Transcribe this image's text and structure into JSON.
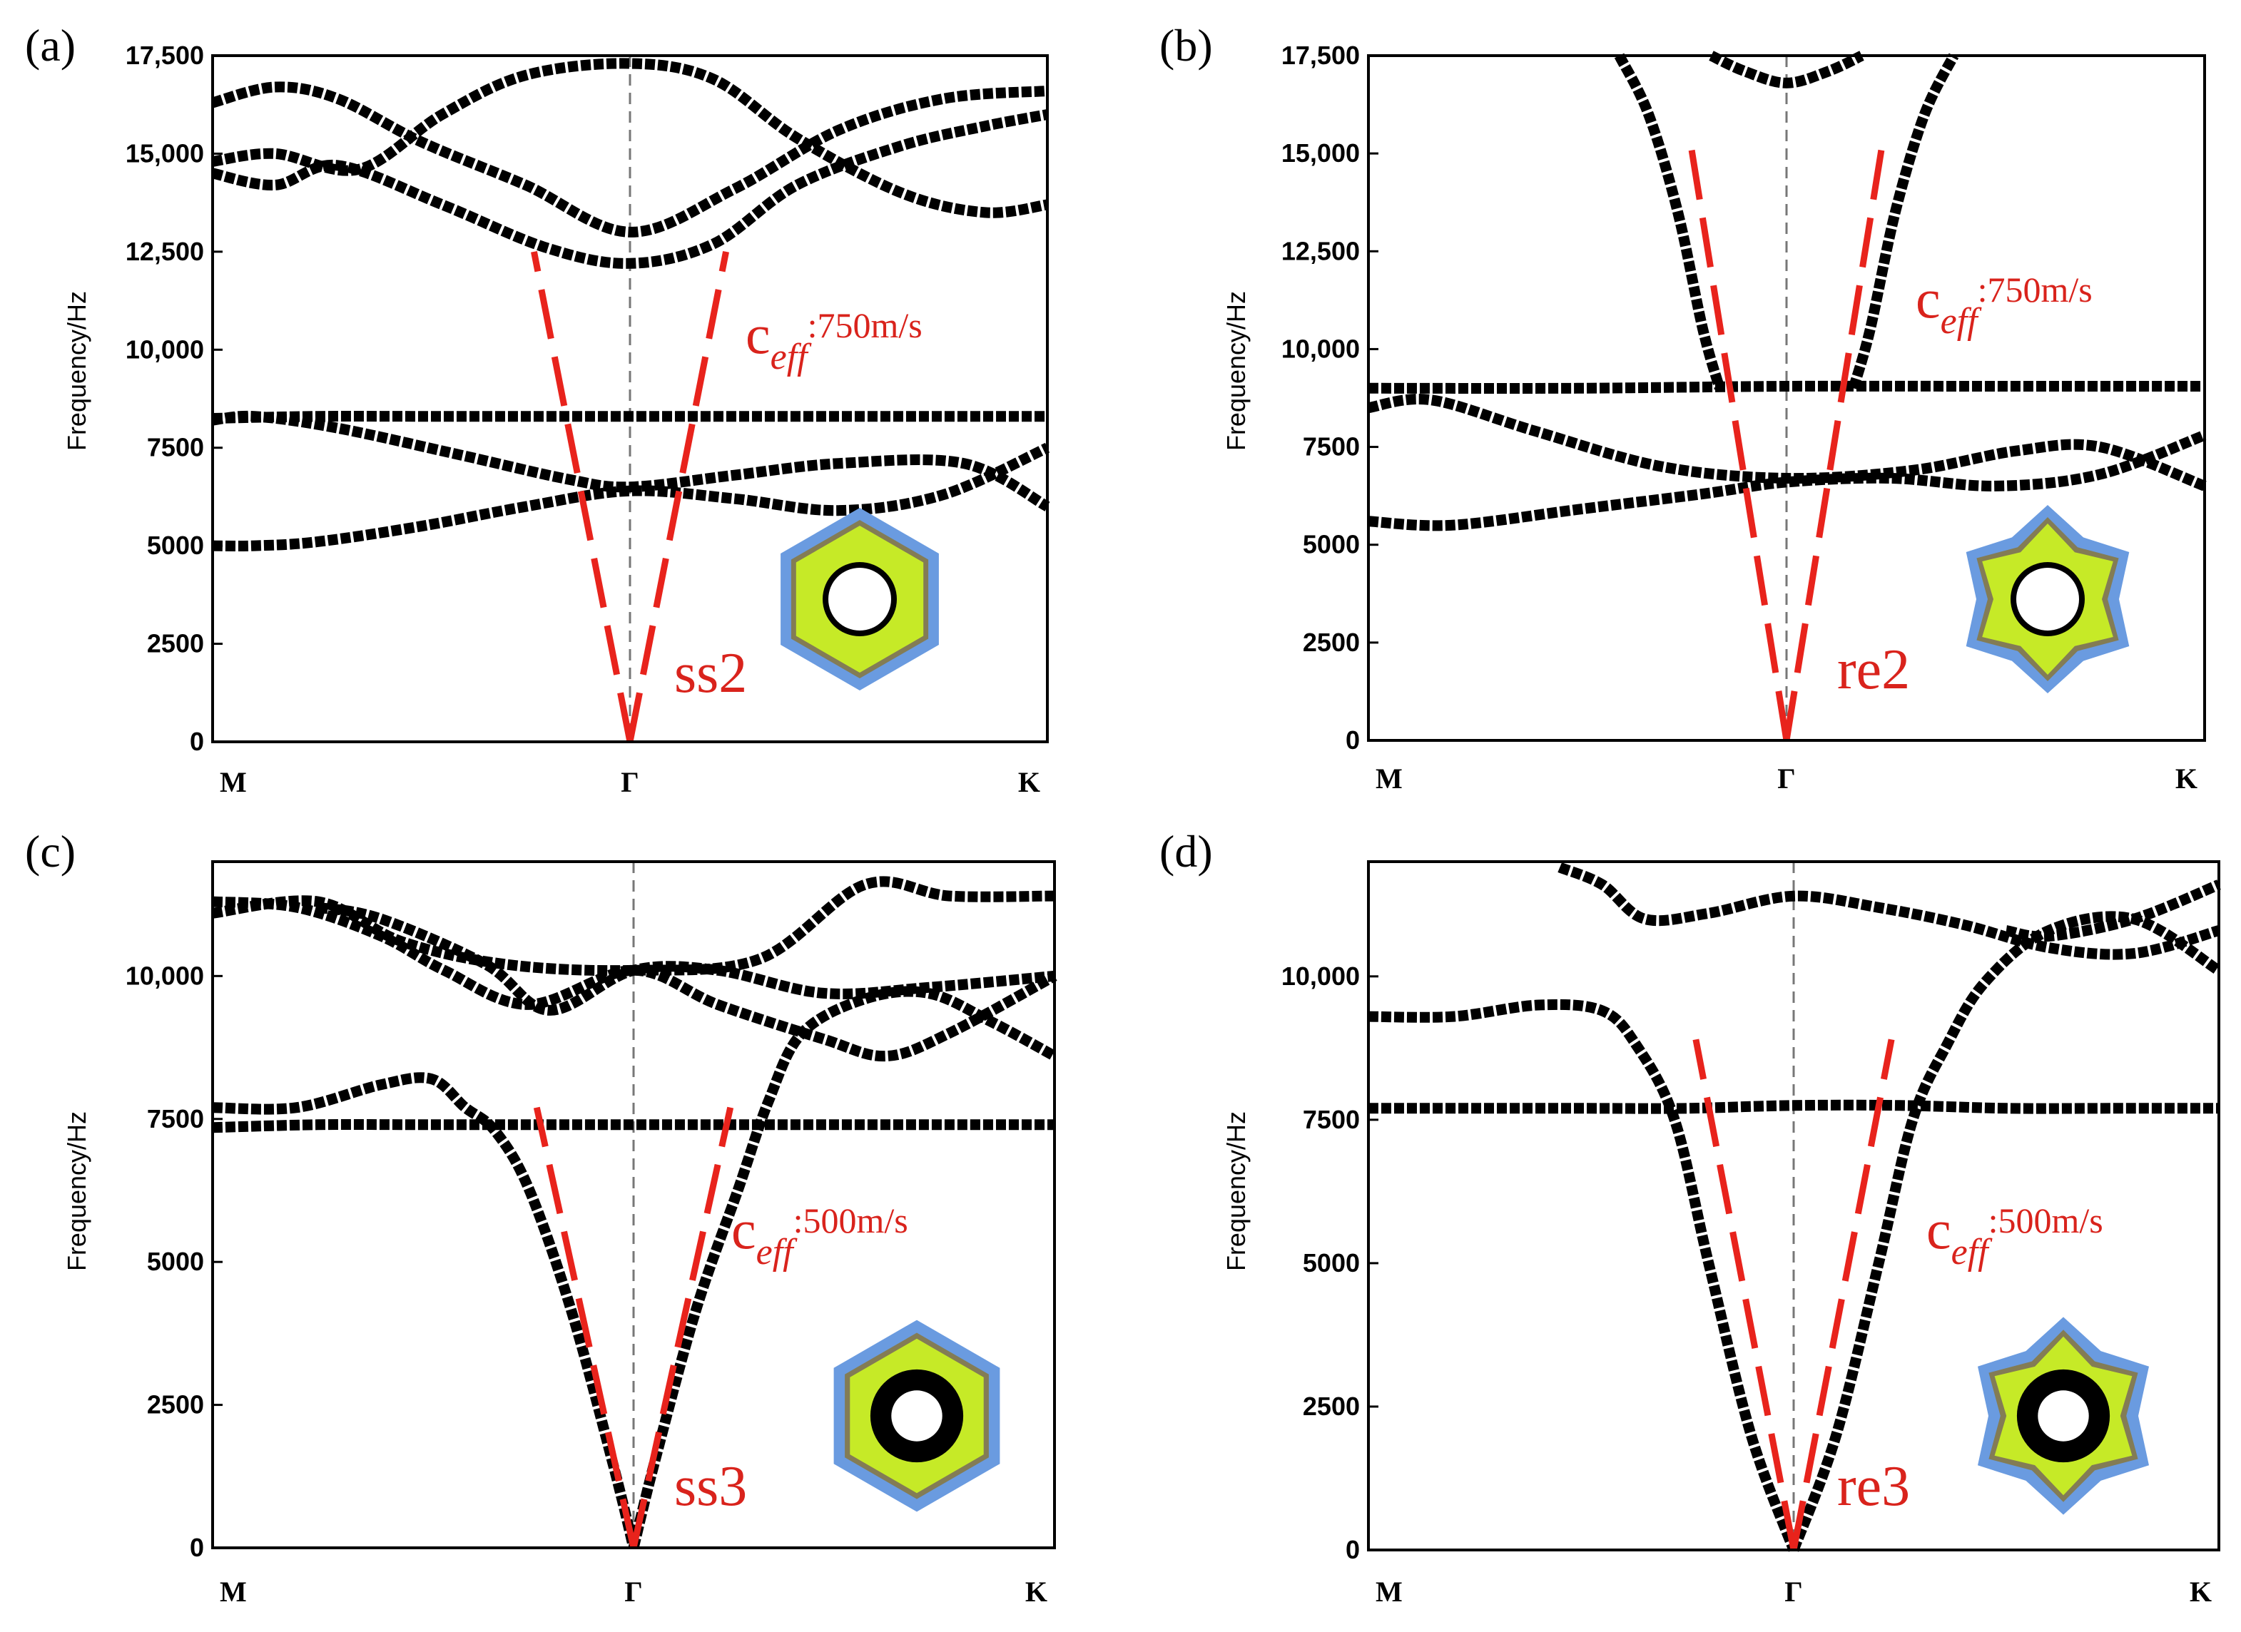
{
  "figure": {
    "background": "#ffffff"
  },
  "chart_data": [
    {
      "panel_label": "(a)",
      "type": "line",
      "ylabel": "Frequency/Hz",
      "ylim": [
        0,
        17500
      ],
      "y_ticks": [
        0,
        2500,
        5000,
        7500,
        10000,
        12500,
        15000,
        17500
      ],
      "y_tick_labels": [
        "0",
        "2500",
        "5000",
        "7500",
        "10,000",
        "12,500",
        "15,000",
        "17,500"
      ],
      "x_ticks": [
        {
          "x": 0,
          "label": "M"
        },
        {
          "x": 1,
          "label": "Γ"
        },
        {
          "x": 2,
          "label": "K"
        }
      ],
      "gamma_line": true,
      "speed_label": {
        "base": "c",
        "sub": "eff",
        "text": ":750m/s"
      },
      "structure_label": "ss2",
      "structure": {
        "shape": "hexagon",
        "ring": "thin"
      },
      "slope_lines": {
        "top_freq": 12500
      },
      "series": [
        {
          "name": "band 1",
          "x": [
            0,
            0.1,
            0.25,
            0.5,
            0.75,
            1,
            1.25,
            1.5,
            1.75,
            2
          ],
          "y": [
            5000,
            5000,
            5100,
            5500,
            6000,
            6400,
            6200,
            5900,
            6300,
            7500
          ]
        },
        {
          "name": "band 2",
          "x": [
            0,
            0.1,
            0.3,
            0.6,
            0.85,
            1,
            1.25,
            1.5,
            1.8,
            2
          ],
          "y": [
            8200,
            8300,
            8000,
            7300,
            6700,
            6500,
            6800,
            7100,
            7100,
            6000
          ]
        },
        {
          "name": "band 3",
          "x": [
            0,
            0.25,
            0.5,
            0.75,
            1,
            1.25,
            1.5,
            1.75,
            2
          ],
          "y": [
            8250,
            8300,
            8300,
            8300,
            8300,
            8300,
            8300,
            8300,
            8300
          ]
        },
        {
          "name": "band 4",
          "x": [
            0,
            0.15,
            0.3,
            0.55,
            0.8,
            1,
            1.2,
            1.4,
            1.65,
            1.85,
            2
          ],
          "y": [
            14500,
            14200,
            14700,
            13700,
            12600,
            12200,
            12700,
            14200,
            15200,
            15700,
            16000
          ]
        },
        {
          "name": "band 5",
          "x": [
            0,
            0.15,
            0.35,
            0.55,
            0.75,
            1,
            1.2,
            1.4,
            1.65,
            1.85,
            2
          ],
          "y": [
            14800,
            15000,
            14600,
            16000,
            17000,
            17300,
            16900,
            15400,
            14000,
            13500,
            13700
          ]
        },
        {
          "name": "band 6",
          "x": [
            0,
            0.15,
            0.3,
            0.5,
            0.75,
            1,
            1.25,
            1.5,
            1.75,
            2
          ],
          "y": [
            16300,
            16700,
            16400,
            15300,
            14200,
            13000,
            14100,
            15600,
            16400,
            16600
          ]
        }
      ]
    },
    {
      "panel_label": "(b)",
      "type": "line",
      "ylabel": "Frequency/Hz",
      "ylim": [
        0,
        17500
      ],
      "y_ticks": [
        0,
        2500,
        5000,
        7500,
        10000,
        12500,
        15000,
        17500
      ],
      "y_tick_labels": [
        "0",
        "2500",
        "5000",
        "7500",
        "10,000",
        "12,500",
        "15,000",
        "17,500"
      ],
      "x_ticks": [
        {
          "x": 0,
          "label": "M"
        },
        {
          "x": 1,
          "label": "Γ"
        },
        {
          "x": 2,
          "label": "K"
        }
      ],
      "gamma_line": true,
      "speed_label": {
        "base": "c",
        "sub": "eff",
        "text": ":750m/s"
      },
      "structure_label": "re2",
      "structure": {
        "shape": "star",
        "ring": "thin"
      },
      "slope_lines": {
        "top_freq": 15300
      },
      "series": [
        {
          "name": "band 1",
          "x": [
            0,
            0.2,
            0.5,
            0.8,
            1,
            1.25,
            1.5,
            1.75,
            2
          ],
          "y": [
            5600,
            5500,
            5900,
            6300,
            6600,
            6700,
            6500,
            6800,
            7800
          ]
        },
        {
          "name": "band 2",
          "x": [
            0,
            0.15,
            0.4,
            0.7,
            1,
            1.3,
            1.55,
            1.75,
            2
          ],
          "y": [
            8500,
            8700,
            7900,
            7000,
            6700,
            6900,
            7400,
            7500,
            6500
          ]
        },
        {
          "name": "band 3",
          "x": [
            0,
            0.5,
            1,
            1.5,
            2
          ],
          "y": [
            9000,
            9000,
            9050,
            9050,
            9050
          ]
        },
        {
          "name": "band 4",
          "x": [
            0.82,
            0.9,
            1,
            1.1,
            1.18
          ],
          "y": [
            17500,
            17100,
            16800,
            17100,
            17500
          ]
        },
        {
          "name": "band 5",
          "x": [
            0.6,
            0.67,
            0.74,
            0.8,
            0.84
          ],
          "y": [
            17500,
            16000,
            13500,
            10500,
            9000
          ]
        },
        {
          "name": "band 6",
          "x": [
            1.16,
            1.2,
            1.26,
            1.33,
            1.4
          ],
          "y": [
            9000,
            10500,
            13500,
            16000,
            17500
          ]
        }
      ]
    },
    {
      "panel_label": "(c)",
      "type": "line",
      "ylabel": "Frequency/Hz",
      "ylim": [
        0,
        12000
      ],
      "y_ticks": [
        0,
        2500,
        5000,
        7500,
        10000
      ],
      "y_tick_labels": [
        "0",
        "2500",
        "5000",
        "7500",
        "10,000"
      ],
      "x_ticks": [
        {
          "x": 0,
          "label": "M"
        },
        {
          "x": 1,
          "label": "Γ"
        },
        {
          "x": 2,
          "label": "K"
        }
      ],
      "gamma_line": true,
      "speed_label": {
        "base": "c",
        "sub": "eff",
        "text": ":500m/s"
      },
      "structure_label": "ss3",
      "structure": {
        "shape": "hexagon",
        "ring": "thick"
      },
      "slope_lines": {
        "top_freq": 7700
      },
      "series": [
        {
          "name": "band 1",
          "x": [
            0,
            0.25,
            0.5,
            0.75,
            1,
            1.25,
            1.5,
            1.75,
            2
          ],
          "y": [
            7350,
            7400,
            7400,
            7400,
            7400,
            7400,
            7400,
            7400,
            7400
          ]
        },
        {
          "name": "band 2",
          "x": [
            0,
            0.2,
            0.4,
            0.52,
            0.6,
            0.67,
            0.75,
            0.85,
            0.95,
            1
          ],
          "y": [
            7700,
            7700,
            8100,
            8200,
            7700,
            7300,
            6300,
            4200,
            1500,
            0
          ]
        },
        {
          "name": "band 3",
          "x": [
            1,
            1.05,
            1.15,
            1.25,
            1.32,
            1.4,
            1.55,
            1.7,
            1.85,
            2
          ],
          "y": [
            0,
            1500,
            4200,
            6300,
            7800,
            9000,
            9600,
            9700,
            9200,
            8600
          ]
        },
        {
          "name": "band 4",
          "x": [
            0,
            0.2,
            0.4,
            0.55,
            0.75,
            1,
            1.2,
            1.45,
            1.6,
            1.75,
            2
          ],
          "y": [
            11300,
            11200,
            10700,
            10100,
            9500,
            10100,
            9500,
            8900,
            8600,
            9000,
            10000
          ]
        },
        {
          "name": "band 5",
          "x": [
            0,
            0.25,
            0.45,
            0.7,
            1,
            1.3,
            1.55,
            1.75,
            2
          ],
          "y": [
            11100,
            11300,
            10600,
            10200,
            10100,
            10300,
            11600,
            11400,
            11400
          ]
        },
        {
          "name": "band 6",
          "x": [
            0.25,
            0.4,
            0.65,
            0.8,
            1,
            1.2,
            1.45,
            1.7,
            2
          ],
          "y": [
            11200,
            11000,
            10200,
            9400,
            10100,
            10100,
            9700,
            9800,
            10000
          ]
        }
      ]
    },
    {
      "panel_label": "(d)",
      "type": "line",
      "ylabel": "Frequency/Hz",
      "ylim": [
        0,
        12000
      ],
      "y_ticks": [
        0,
        2500,
        5000,
        7500,
        10000
      ],
      "y_tick_labels": [
        "0",
        "2500",
        "5000",
        "7500",
        "10,000"
      ],
      "x_ticks": [
        {
          "x": 0,
          "label": "M"
        },
        {
          "x": 1,
          "label": "Γ"
        },
        {
          "x": 2,
          "label": "K"
        }
      ],
      "gamma_line": true,
      "speed_label": {
        "base": "c",
        "sub": "eff",
        "text": ":500m/s"
      },
      "structure_label": "re3",
      "structure": {
        "shape": "star",
        "ring": "thick"
      },
      "slope_lines": {
        "top_freq": 8900
      },
      "series": [
        {
          "name": "band 1",
          "x": [
            0,
            0.25,
            0.5,
            0.75,
            1,
            1.25,
            1.5,
            1.75,
            2
          ],
          "y": [
            7700,
            7700,
            7700,
            7700,
            7750,
            7750,
            7700,
            7700,
            7700
          ]
        },
        {
          "name": "band 2",
          "x": [
            0,
            0.2,
            0.4,
            0.55,
            0.63,
            0.72,
            0.8,
            0.9,
            1
          ],
          "y": [
            9300,
            9300,
            9500,
            9400,
            8800,
            7500,
            5000,
            2000,
            0
          ]
        },
        {
          "name": "band 3",
          "x": [
            1,
            1.1,
            1.2,
            1.28,
            1.36,
            1.45,
            1.6,
            1.8,
            2
          ],
          "y": [
            0,
            2000,
            5000,
            7500,
            8800,
            9900,
            10800,
            11000,
            10100
          ]
        },
        {
          "name": "band 4",
          "x": [
            0.45,
            0.55,
            0.65,
            0.8,
            1,
            1.2,
            1.4,
            1.6,
            1.8,
            2
          ],
          "y": [
            11900,
            11600,
            11000,
            11100,
            11400,
            11200,
            10900,
            10500,
            10400,
            10800
          ]
        },
        {
          "name": "band 5",
          "x": [
            1.5,
            1.6,
            1.8,
            2
          ],
          "y": [
            10800,
            10700,
            11000,
            11600
          ]
        }
      ]
    }
  ]
}
